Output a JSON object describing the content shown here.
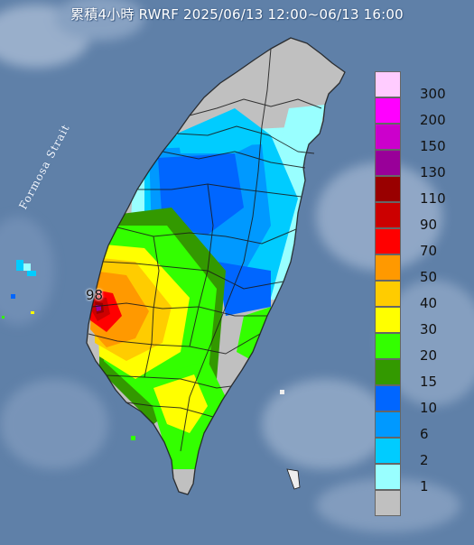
{
  "title": "累積4小時 RWRF 2025/06/13 12:00~06/13 16:00",
  "map": {
    "strait_label": "Formosa Strait",
    "peak_value_label": "98"
  },
  "legend": {
    "units": "",
    "items": [
      {
        "label": "300",
        "color": "#ffccff"
      },
      {
        "label": "200",
        "color": "#ff00ff"
      },
      {
        "label": "150",
        "color": "#cc00cc"
      },
      {
        "label": "130",
        "color": "#990099"
      },
      {
        "label": "110",
        "color": "#990000"
      },
      {
        "label": "90",
        "color": "#cc0000"
      },
      {
        "label": "70",
        "color": "#ff0000"
      },
      {
        "label": "50",
        "color": "#ff9900"
      },
      {
        "label": "40",
        "color": "#ffcc00"
      },
      {
        "label": "30",
        "color": "#ffff00"
      },
      {
        "label": "20",
        "color": "#33ff00"
      },
      {
        "label": "15",
        "color": "#339900"
      },
      {
        "label": "10",
        "color": "#0066ff"
      },
      {
        "label": "6",
        "color": "#0099ff"
      },
      {
        "label": "2",
        "color": "#00ccff"
      },
      {
        "label": "1",
        "color": "#99ffff"
      },
      {
        "label": "",
        "color": "#c0c0c0"
      }
    ]
  },
  "colors": {
    "sea": "#5f80a8",
    "land_none": "#c0c0c0",
    "boundary": "#1a1a1a"
  }
}
